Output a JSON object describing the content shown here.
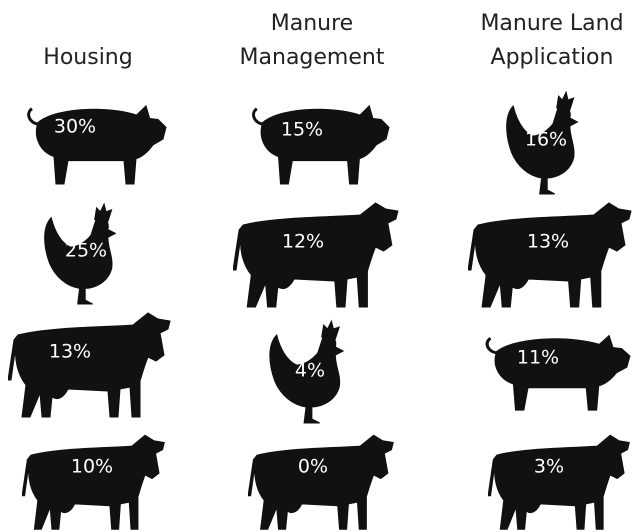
{
  "columns": [
    {
      "title": "Housing",
      "cells": [
        "30%",
        "25%",
        "13%",
        "10%"
      ]
    },
    {
      "title": "Manure Management",
      "cells": [
        "15%",
        "12%",
        "4%",
        "0%"
      ]
    },
    {
      "title": "Manure Land Application",
      "cells": [
        "16%",
        "13%",
        "11%",
        "3%"
      ]
    }
  ]
}
